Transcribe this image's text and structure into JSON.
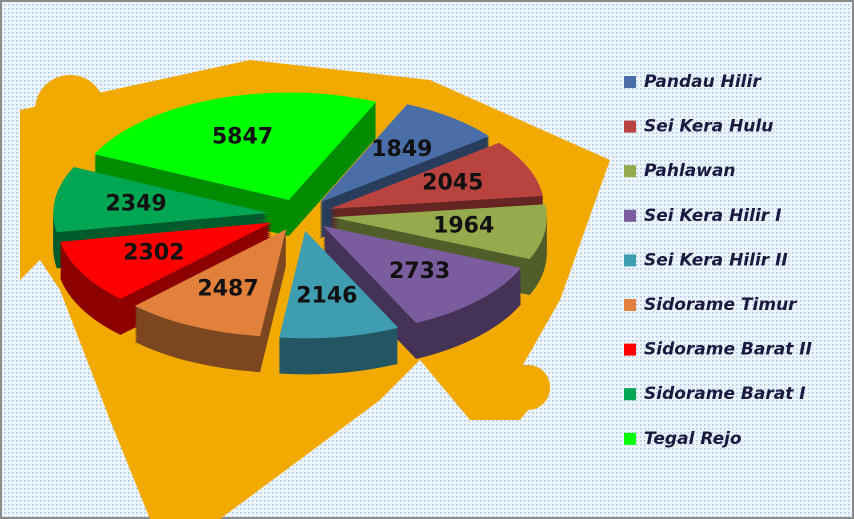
{
  "chart_data": {
    "type": "pie",
    "categories": [
      "Pandau Hilir",
      "Sei Kera Hulu",
      "Pahlawan",
      "Sei Kera Hilir I",
      "Sei Kera Hilir II",
      "Sidorame Timur",
      "Sidorame Barat II",
      "Sidorame Barat I",
      "Tegal Rejo"
    ],
    "values": [
      1849,
      2045,
      1964,
      2733,
      2146,
      2487,
      2302,
      2349,
      5847
    ],
    "colors": [
      "#4a6fa8",
      "#b8433f",
      "#94aa4c",
      "#7b5c9f",
      "#3f9db2",
      "#e2813b",
      "#ff0000",
      "#00a651",
      "#00ff00"
    ],
    "legend": "right"
  }
}
